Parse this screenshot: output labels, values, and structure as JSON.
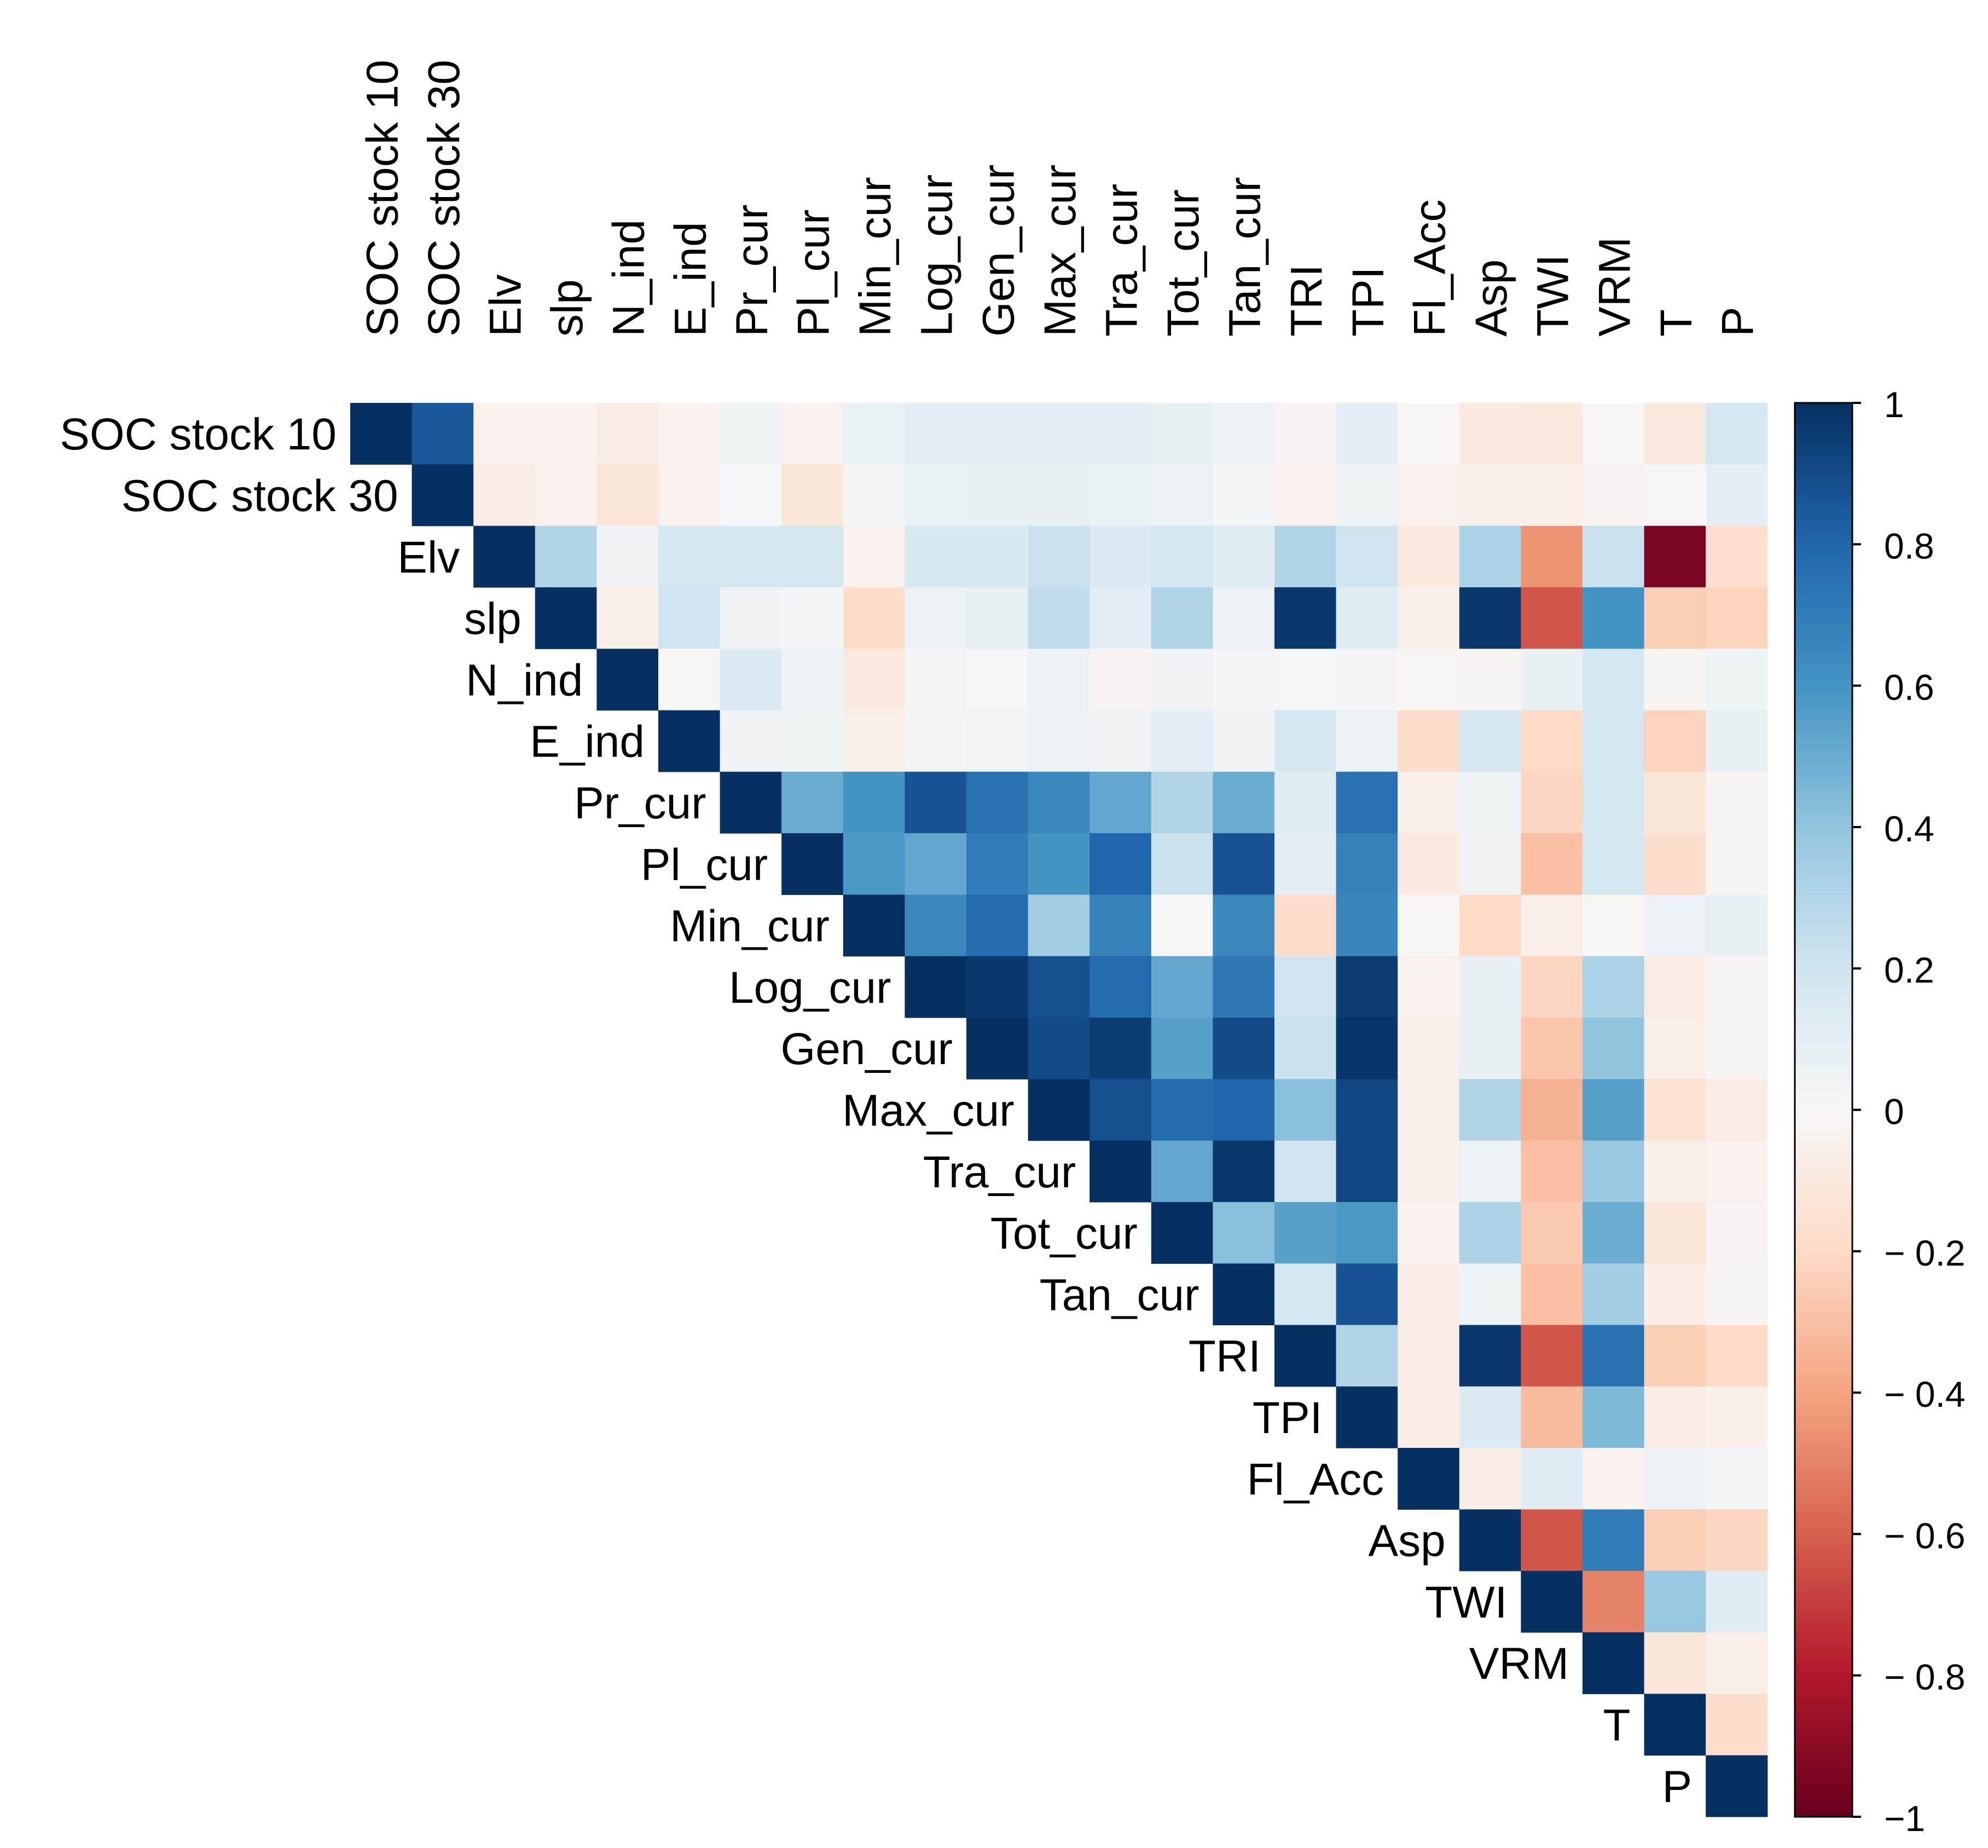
{
  "chart_data": {
    "type": "heatmap",
    "title": "",
    "variables": [
      "SOC stock 10",
      "SOC stock 30",
      "Elv",
      "slp",
      "N_ind",
      "E_ind",
      "Pr_cur",
      "Pl_cur",
      "Min_cur",
      "Log_cur",
      "Gen_cur",
      "Max_cur",
      "Tra_cur",
      "Tot_cur",
      "Tan_cur",
      "TRI",
      "TPI",
      "Fl_Acc",
      "Asp",
      "TWI",
      "VRM",
      "T",
      "P"
    ],
    "triangle": "upper",
    "value_range": [
      -1,
      1
    ],
    "colorbar": {
      "ticks": [
        1,
        0.8,
        0.6,
        0.4,
        0.2,
        0,
        -0.2,
        -0.4,
        -0.6,
        -0.8,
        -1
      ],
      "tick_labels": [
        "1",
        "0.8",
        "0.6",
        "0.4",
        "0.2",
        "0",
        "− 0.2",
        "− 0.4",
        "− 0.6",
        "− 0.8",
        "−1"
      ],
      "colormap": "RdBu"
    },
    "matrix": [
      [
        1,
        0.85,
        -0.04,
        -0.04,
        -0.07,
        -0.04,
        0.05,
        -0.04,
        0.07,
        0.1,
        0.1,
        0.1,
        0.1,
        0.08,
        0.06,
        -0.03,
        0.1,
        -0.01,
        -0.09,
        -0.1,
        -0.01,
        -0.1,
        0.18
      ],
      [
        null,
        1,
        -0.08,
        -0.04,
        -0.12,
        -0.04,
        0.01,
        -0.12,
        0.03,
        0.07,
        0.08,
        0.08,
        0.07,
        0.06,
        0.02,
        -0.04,
        0.05,
        -0.04,
        -0.05,
        -0.05,
        -0.03,
        -0.01,
        0.1
      ],
      [
        null,
        null,
        1,
        0.3,
        0.04,
        0.18,
        0.18,
        0.18,
        -0.04,
        0.16,
        0.16,
        0.22,
        0.15,
        0.18,
        0.12,
        0.3,
        0.2,
        -0.1,
        0.32,
        -0.45,
        0.22,
        -0.95,
        -0.17
      ],
      [
        null,
        null,
        null,
        1,
        -0.06,
        0.2,
        0.04,
        0.02,
        -0.18,
        0.06,
        0.08,
        0.25,
        0.1,
        0.3,
        0.06,
        0.97,
        0.12,
        -0.05,
        0.97,
        -0.63,
        0.6,
        -0.25,
        -0.23
      ],
      [
        null,
        null,
        null,
        null,
        1,
        -0.01,
        0.15,
        0.06,
        -0.1,
        0.03,
        0.01,
        0.06,
        -0.03,
        0.04,
        0.02,
        0.01,
        0.02,
        -0.01,
        -0.02,
        0.08,
        0.18,
        -0.02,
        0.05
      ],
      [
        null,
        null,
        null,
        null,
        null,
        1,
        0.04,
        0.05,
        -0.06,
        0.02,
        0.03,
        0.06,
        0.04,
        0.1,
        0.04,
        0.18,
        0.06,
        -0.18,
        0.18,
        -0.2,
        0.18,
        -0.23,
        0.08
      ],
      [
        null,
        null,
        null,
        null,
        null,
        null,
        1,
        0.5,
        0.6,
        0.87,
        0.75,
        0.65,
        0.52,
        0.3,
        0.5,
        0.12,
        0.75,
        -0.05,
        0.05,
        -0.22,
        0.18,
        -0.12,
        -0.02
      ],
      [
        null,
        null,
        null,
        null,
        null,
        null,
        null,
        1,
        0.58,
        0.52,
        0.7,
        0.6,
        0.8,
        0.22,
        0.87,
        0.1,
        0.68,
        -0.09,
        0.04,
        -0.3,
        0.18,
        -0.18,
        -0.02
      ],
      [
        null,
        null,
        null,
        null,
        null,
        null,
        null,
        null,
        1,
        0.65,
        0.77,
        0.35,
        0.68,
        0.0,
        0.65,
        -0.18,
        0.66,
        -0.01,
        -0.2,
        -0.06,
        -0.01,
        0.06,
        0.08
      ],
      [
        null,
        null,
        null,
        null,
        null,
        null,
        null,
        null,
        null,
        1,
        0.97,
        0.88,
        0.78,
        0.52,
        0.72,
        0.2,
        0.96,
        -0.04,
        0.08,
        -0.22,
        0.32,
        -0.07,
        -0.02
      ],
      [
        null,
        null,
        null,
        null,
        null,
        null,
        null,
        null,
        null,
        null,
        1,
        0.9,
        0.95,
        0.55,
        0.9,
        0.22,
        0.98,
        -0.05,
        0.08,
        -0.28,
        0.4,
        -0.06,
        -0.02
      ],
      [
        null,
        null,
        null,
        null,
        null,
        null,
        null,
        null,
        null,
        null,
        null,
        1,
        0.88,
        0.78,
        0.8,
        0.42,
        0.92,
        -0.05,
        0.3,
        -0.35,
        0.55,
        -0.15,
        -0.08
      ],
      [
        null,
        null,
        null,
        null,
        null,
        null,
        null,
        null,
        null,
        null,
        null,
        null,
        1,
        0.52,
        0.97,
        0.2,
        0.92,
        -0.05,
        0.06,
        -0.3,
        0.38,
        -0.06,
        -0.04
      ],
      [
        null,
        null,
        null,
        null,
        null,
        null,
        null,
        null,
        null,
        null,
        null,
        null,
        null,
        1,
        0.42,
        0.55,
        0.58,
        -0.04,
        0.32,
        -0.26,
        0.5,
        -0.12,
        -0.03
      ],
      [
        null,
        null,
        null,
        null,
        null,
        null,
        null,
        null,
        null,
        null,
        null,
        null,
        null,
        null,
        1,
        0.18,
        0.87,
        -0.07,
        0.05,
        -0.3,
        0.35,
        -0.07,
        -0.02
      ],
      [
        null,
        null,
        null,
        null,
        null,
        null,
        null,
        null,
        null,
        null,
        null,
        null,
        null,
        null,
        null,
        1,
        0.3,
        -0.07,
        0.97,
        -0.63,
        0.75,
        -0.25,
        -0.2
      ],
      [
        null,
        null,
        null,
        null,
        null,
        null,
        null,
        null,
        null,
        null,
        null,
        null,
        null,
        null,
        null,
        null,
        1,
        -0.07,
        0.15,
        -0.32,
        0.45,
        -0.07,
        -0.05
      ],
      [
        null,
        null,
        null,
        null,
        null,
        null,
        null,
        null,
        null,
        null,
        null,
        null,
        null,
        null,
        null,
        null,
        null,
        1,
        -0.07,
        0.12,
        -0.04,
        0.06,
        0.02
      ],
      [
        null,
        null,
        null,
        null,
        null,
        null,
        null,
        null,
        null,
        null,
        null,
        null,
        null,
        null,
        null,
        null,
        null,
        null,
        1,
        -0.63,
        0.7,
        -0.25,
        -0.22
      ],
      [
        null,
        null,
        null,
        null,
        null,
        null,
        null,
        null,
        null,
        null,
        null,
        null,
        null,
        null,
        null,
        null,
        null,
        null,
        null,
        1,
        -0.5,
        0.38,
        0.12
      ],
      [
        null,
        null,
        null,
        null,
        null,
        null,
        null,
        null,
        null,
        null,
        null,
        null,
        null,
        null,
        null,
        null,
        null,
        null,
        null,
        null,
        1,
        -0.12,
        -0.06
      ],
      [
        null,
        null,
        null,
        null,
        null,
        null,
        null,
        null,
        null,
        null,
        null,
        null,
        null,
        null,
        null,
        null,
        null,
        null,
        null,
        null,
        null,
        1,
        -0.18
      ],
      [
        null,
        null,
        null,
        null,
        null,
        null,
        null,
        null,
        null,
        null,
        null,
        null,
        null,
        null,
        null,
        null,
        null,
        null,
        null,
        null,
        null,
        null,
        1
      ]
    ]
  }
}
